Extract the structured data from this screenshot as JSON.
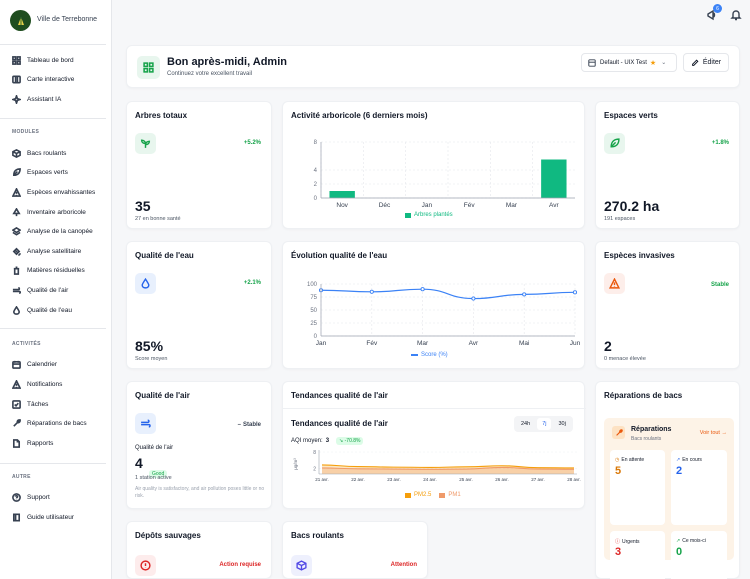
{
  "brand": {
    "name": "Ville de Terrebonne"
  },
  "topbar": {
    "notification_count": "6"
  },
  "sidebar": {
    "main": [
      {
        "label": "Tableau de bord",
        "icon": "grid-icon"
      },
      {
        "label": "Carte interactive",
        "icon": "map-icon"
      },
      {
        "label": "Assistant IA",
        "icon": "sparkle-icon"
      }
    ],
    "modules_label": "MODULES",
    "modules": [
      {
        "label": "Bacs roulants"
      },
      {
        "label": "Espaces verts"
      },
      {
        "label": "Espèces envahissantes"
      },
      {
        "label": "Inventaire arboricole"
      },
      {
        "label": "Analyse de la canopée"
      },
      {
        "label": "Analyse satellitaire"
      },
      {
        "label": "Matières résiduelles"
      },
      {
        "label": "Qualité de l'air"
      },
      {
        "label": "Qualité de l'eau"
      }
    ],
    "activities_label": "ACTIVITÉS",
    "activities": [
      {
        "label": "Calendrier"
      },
      {
        "label": "Notifications"
      },
      {
        "label": "Tâches"
      },
      {
        "label": "Réparations de bacs"
      },
      {
        "label": "Rapports"
      }
    ],
    "other_label": "AUTRE",
    "other": [
      {
        "label": "Support"
      },
      {
        "label": "Guide utilisateur"
      }
    ]
  },
  "welcome": {
    "title": "Bon après-midi, Admin",
    "subtitle": "Continuez votre excellent travail",
    "dashboard_select": "Default - UIX Test",
    "edit_label": "Éditer"
  },
  "cards": {
    "trees": {
      "title": "Arbres totaux",
      "change": "+5.2%",
      "value": "35",
      "sub": "27 en bonne santé"
    },
    "green": {
      "title": "Espaces verts",
      "change": "+1.8%",
      "value": "270.2 ha",
      "sub": "191 espaces"
    },
    "water": {
      "title": "Qualité de l'eau",
      "change": "+2.1%",
      "value": "85%",
      "sub": "Score moyen"
    },
    "invasive": {
      "title": "Espèces invasives",
      "change": "Stable",
      "value": "2",
      "sub": "0 menace élevée"
    },
    "air": {
      "title": "Qualité de l'air",
      "change": "Stable",
      "label": "Qualité de l'air",
      "value": "4",
      "badge": "Good",
      "stations": "1 station active",
      "note": "Air quality is satisfactory, and air pollution poses little or no risk."
    },
    "dumps": {
      "title": "Dépôts sauvages",
      "status": "Action requise"
    },
    "bins": {
      "title": "Bacs roulants",
      "status": "Attention"
    },
    "repairs": {
      "title": "Réparations de bacs",
      "header": "Réparations",
      "header_sub": "Bacs roulants",
      "see_all": "Voir tout →",
      "stats": [
        {
          "label": "En attente",
          "value": "5",
          "color": "#d97706"
        },
        {
          "label": "En cours",
          "value": "2",
          "color": "#2563eb"
        },
        {
          "label": "Urgents",
          "value": "3",
          "color": "#dc2626"
        },
        {
          "label": "Ce mois-ci",
          "value": "0",
          "color": "#16a34a"
        }
      ]
    }
  },
  "chart_data": [
    {
      "type": "bar",
      "title": "Activité arboricole (6 derniers mois)",
      "categories": [
        "Nov",
        "Déc",
        "Jan",
        "Fév",
        "Mar",
        "Avr"
      ],
      "series": [
        {
          "name": "Arbres plantés",
          "values": [
            1,
            0,
            0,
            0,
            0,
            5.5
          ],
          "color": "#10b981"
        }
      ],
      "ylim": [
        0,
        8
      ],
      "yticks": [
        "0",
        "2",
        "4",
        "8"
      ]
    },
    {
      "type": "line",
      "title": "Évolution qualité de l'eau",
      "categories": [
        "Jan",
        "Fév",
        "Mar",
        "Avr",
        "Mai",
        "Jun"
      ],
      "series": [
        {
          "name": "Score (%)",
          "values": [
            88,
            85,
            90,
            72,
            80,
            84
          ],
          "color": "#3b82f6"
        }
      ],
      "ylim": [
        0,
        100
      ],
      "yticks": [
        "0",
        "25",
        "50",
        "75",
        "100"
      ]
    },
    {
      "type": "area",
      "title": "Tendances qualité de l'air",
      "heading": "Tendances qualité de l'air",
      "aqi_label": "AQI moyen:",
      "aqi_value": "3",
      "aqi_change": "-70.8%",
      "ranges": [
        "24h",
        "7j",
        "30j"
      ],
      "active_range": "7j",
      "ylabel": "µg/m³",
      "categories": [
        "21 avr.",
        "22 avr.",
        "23 avr.",
        "24 avr.",
        "25 avr.",
        "26 avr.",
        "27 avr.",
        "28 avr."
      ],
      "series": [
        {
          "name": "PM2.5",
          "values": [
            3.3,
            2.7,
            2.5,
            2.4,
            2.6,
            3.0,
            2.3,
            2.2
          ],
          "color": "#f59e0b"
        },
        {
          "name": "PM1",
          "values": [
            2.2,
            1.9,
            1.8,
            1.7,
            1.8,
            2.4,
            1.8,
            1.7
          ],
          "color": "#ef9a6a"
        }
      ],
      "ylim": [
        0,
        8
      ],
      "yticks": [
        "2",
        "8"
      ]
    }
  ]
}
